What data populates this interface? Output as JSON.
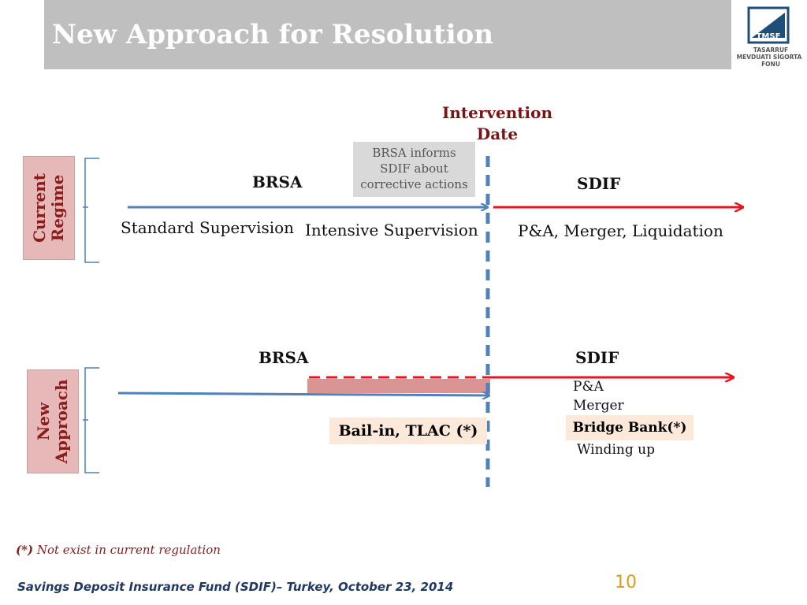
{
  "header": {
    "title": "New Approach for Resolution"
  },
  "logo": {
    "acronym": "TMSF",
    "line1": "TASARRUF",
    "line2": "MEVDUATI SİGORTA",
    "line3": "FONU"
  },
  "intervention": {
    "line1": "Intervention",
    "line2": "Date"
  },
  "brsa_box": {
    "line1": "BRSA informs",
    "line2": "SDIF about",
    "line3": "corrective actions"
  },
  "current": {
    "label_line1": "Current",
    "label_line2": "Regime",
    "left_authority": "BRSA",
    "right_authority": "SDIF",
    "standard": "Standard Supervision",
    "intensive": "Intensive Supervision",
    "right_actions": "P&A, Merger, Liquidation"
  },
  "new": {
    "label_line1": "New",
    "label_line2": "Approach",
    "left_authority": "BRSA",
    "right_authority": "SDIF",
    "pa": "P&A",
    "merger": "Merger",
    "bridge": "Bridge Bank(*)",
    "winding": "Winding up",
    "bail": "Bail-in, TLAC (*)"
  },
  "footnote": {
    "mark": "(*)",
    "text": " Not exist in  current regulation"
  },
  "footer": {
    "text": "Savings Deposit Insurance Fund (SDIF)– Turkey,  October 23, 2014",
    "page": "10"
  },
  "colors": {
    "blue_arrow": "#4f81bd",
    "red_arrow": "#e8161c",
    "pink_box": "#e6b8b7",
    "peach_box": "#fde9d9"
  }
}
